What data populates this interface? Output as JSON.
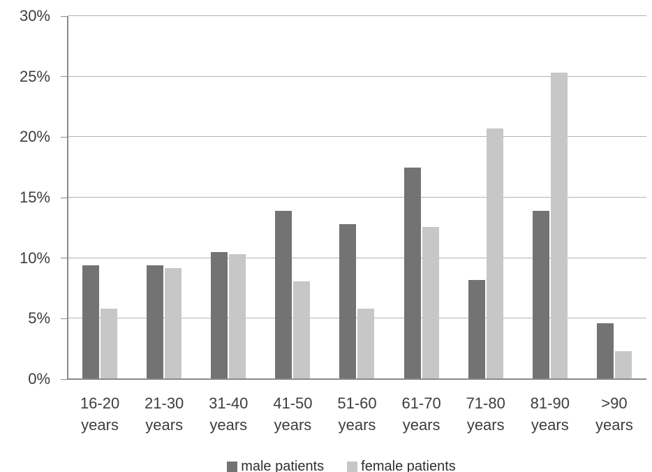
{
  "chart_data": {
    "type": "bar",
    "title": "",
    "xlabel": "",
    "ylabel": "",
    "ylim": [
      0,
      30
    ],
    "grid": true,
    "legend_position": "bottom",
    "yticks": [
      {
        "v": 0,
        "label": "0%"
      },
      {
        "v": 5,
        "label": "5%"
      },
      {
        "v": 10,
        "label": "10%"
      },
      {
        "v": 15,
        "label": "15%"
      },
      {
        "v": 20,
        "label": "20%"
      },
      {
        "v": 25,
        "label": "25%"
      },
      {
        "v": 30,
        "label": "30%"
      }
    ],
    "categories": [
      "16-20 years",
      "21-30 years",
      "31-40 years",
      "41-50 years",
      "51-60 years",
      "61-70 years",
      "71-80 years",
      "81-90 years",
      ">90 years"
    ],
    "series": [
      {
        "name": "male patients",
        "color": "#737373",
        "values": [
          9.4,
          9.4,
          10.5,
          13.9,
          12.8,
          17.5,
          8.2,
          13.9,
          4.6
        ]
      },
      {
        "name": "female patients",
        "color": "#c7c7c7",
        "values": [
          5.8,
          9.2,
          10.3,
          8.1,
          5.8,
          12.6,
          20.7,
          25.3,
          2.3
        ]
      }
    ]
  },
  "colors": {
    "gridline": "#b2b2b2",
    "axis": "#8a8a8a",
    "text": "#3d3d3d",
    "background": "#ffffff"
  }
}
